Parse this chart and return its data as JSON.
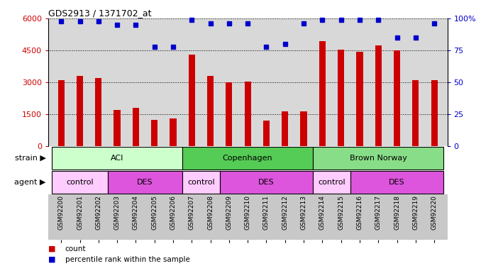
{
  "title": "GDS2913 / 1371702_at",
  "samples": [
    "GSM92200",
    "GSM92201",
    "GSM92202",
    "GSM92203",
    "GSM92204",
    "GSM92205",
    "GSM92206",
    "GSM92207",
    "GSM92208",
    "GSM92209",
    "GSM92210",
    "GSM92211",
    "GSM92212",
    "GSM92213",
    "GSM92214",
    "GSM92215",
    "GSM92216",
    "GSM92217",
    "GSM92218",
    "GSM92219",
    "GSM92220"
  ],
  "counts": [
    3100,
    3300,
    3200,
    1700,
    1800,
    1250,
    1300,
    4300,
    3300,
    3000,
    3050,
    1200,
    1650,
    1650,
    4950,
    4550,
    4450,
    4750,
    4500,
    3100,
    3100
  ],
  "percentiles": [
    98,
    98,
    98,
    95,
    95,
    78,
    78,
    99,
    96,
    96,
    96,
    78,
    80,
    96,
    99,
    99,
    99,
    99,
    85,
    85,
    96
  ],
  "bar_color": "#CC0000",
  "dot_color": "#0000CC",
  "ylim_left": [
    0,
    6000
  ],
  "ylim_right": [
    0,
    100
  ],
  "yticks_left": [
    0,
    1500,
    3000,
    4500,
    6000
  ],
  "yticks_right": [
    0,
    25,
    50,
    75,
    100
  ],
  "strain_groups": [
    {
      "label": "ACI",
      "start": 0,
      "end": 6,
      "color": "#CCFFCC"
    },
    {
      "label": "Copenhagen",
      "start": 7,
      "end": 13,
      "color": "#55CC55"
    },
    {
      "label": "Brown Norway",
      "start": 14,
      "end": 20,
      "color": "#88DD88"
    }
  ],
  "agent_groups": [
    {
      "label": "control",
      "start": 0,
      "end": 2,
      "color": "#FFCCFF"
    },
    {
      "label": "DES",
      "start": 3,
      "end": 6,
      "color": "#DD55DD"
    },
    {
      "label": "control",
      "start": 7,
      "end": 8,
      "color": "#FFCCFF"
    },
    {
      "label": "DES",
      "start": 9,
      "end": 13,
      "color": "#DD55DD"
    },
    {
      "label": "control",
      "start": 14,
      "end": 15,
      "color": "#FFCCFF"
    },
    {
      "label": "DES",
      "start": 16,
      "end": 20,
      "color": "#DD55DD"
    }
  ],
  "strain_label": "strain",
  "agent_label": "agent",
  "legend_count_label": "count",
  "legend_pct_label": "percentile rank within the sample",
  "bar_bg_color": "#D8D8D8",
  "plot_bg_color": "#FFFFFF",
  "xticklabel_bg": "#C8C8C8"
}
